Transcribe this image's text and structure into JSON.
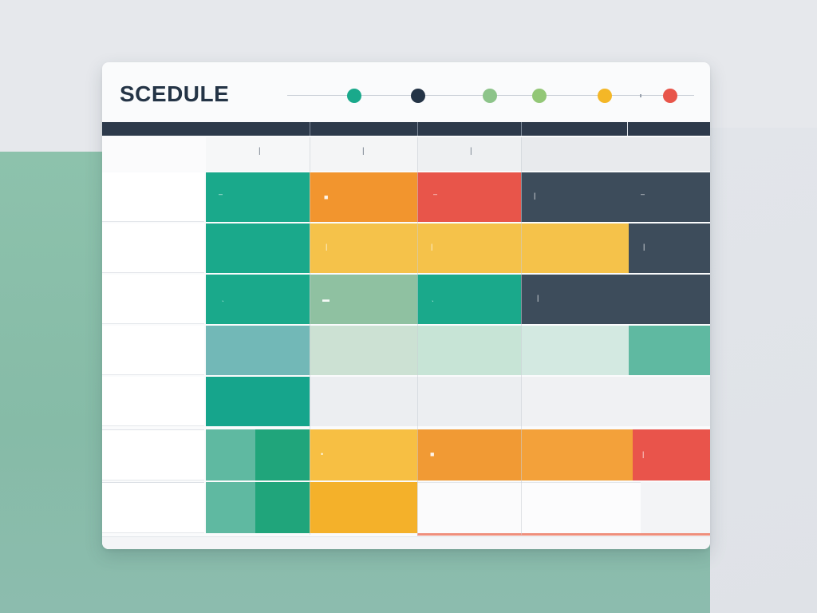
{
  "title": "SCEDULE",
  "colors": {
    "teal": "#1aa98b",
    "dark_navy": "#243446",
    "sage": "#8dc48a",
    "light_green": "#93c777",
    "yellow": "#f4b727",
    "red": "#e8554a",
    "orange": "#f2952e",
    "slate": "#3d4c5b",
    "header": "#2d3a4b"
  },
  "timeline": {
    "dots": [
      {
        "color": "#1aa98b",
        "icon": "milestone-dot"
      },
      {
        "color": "#243446",
        "icon": "milestone-dot"
      },
      {
        "color": "#8dc48a",
        "icon": "milestone-dot"
      },
      {
        "color": "#93c777",
        "icon": "milestone-dot"
      },
      {
        "color": "#f4b727",
        "icon": "milestone-dot"
      },
      {
        "color": "#e8554a",
        "icon": "milestone-dot"
      }
    ]
  },
  "columns": [
    "",
    "",
    "",
    "",
    ""
  ],
  "rows": [
    {
      "label": "",
      "label_color": "#22b39a"
    },
    {
      "label": "",
      "label_color": "#f1a640"
    },
    {
      "label": "",
      "label_color": "#f08a3c"
    },
    {
      "label": "",
      "label_color": "#e0705f"
    },
    {
      "label": "",
      "label_color": "#8f5aa8"
    },
    {
      "label": "",
      "label_color": "#2aa77d"
    },
    {
      "label": "",
      "label_color": "#21a58f"
    }
  ]
}
